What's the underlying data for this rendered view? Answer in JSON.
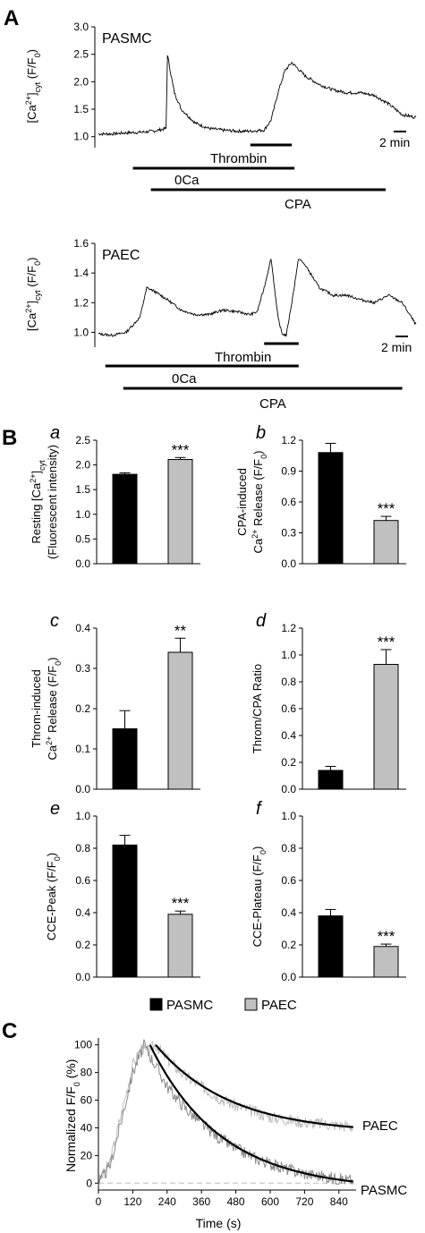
{
  "panel_letters": {
    "A": "A",
    "B": "B",
    "C": "C"
  },
  "sub_letters": {
    "a": "a",
    "b": "b",
    "c": "c",
    "d": "d",
    "e": "e",
    "f": "f"
  },
  "legend": [
    {
      "label": "PASMC",
      "color": "#000000"
    },
    {
      "label": "PAEC",
      "color": "#c0c0c0"
    }
  ],
  "chart_data": [
    {
      "id": "A-top",
      "type": "line",
      "label": "PASMC",
      "ylabel": "[Ca2+]cyt (F/F0)",
      "ylim": [
        0.8,
        3.0
      ],
      "yticks": [
        "1.0",
        "1.5",
        "2.0",
        "2.5",
        "3.0"
      ],
      "scale_bar": "2 min",
      "trace": {
        "t": [
          0,
          10,
          20,
          30,
          40,
          49,
          50,
          52,
          55,
          60,
          70,
          80,
          90,
          100,
          110,
          120,
          125,
          130,
          135,
          140,
          150,
          160,
          170,
          180,
          190,
          200,
          210,
          220,
          230
        ],
        "y": [
          1.05,
          1.05,
          1.07,
          1.08,
          1.1,
          1.15,
          2.5,
          2.2,
          1.8,
          1.5,
          1.25,
          1.15,
          1.12,
          1.1,
          1.1,
          1.12,
          1.3,
          1.8,
          2.2,
          2.35,
          2.1,
          1.95,
          1.85,
          1.8,
          1.8,
          1.75,
          1.6,
          1.4,
          1.35
        ]
      },
      "bars": [
        {
          "label": "Thrombin",
          "start": 110,
          "end": 140
        },
        {
          "label": "0Ca",
          "start": 25,
          "end": 142
        },
        {
          "label": "CPA",
          "start": 38,
          "end": 208
        }
      ]
    },
    {
      "id": "A-bottom",
      "type": "line",
      "label": "PAEC",
      "ylabel": "[Ca2+]cyt (F/F0)",
      "ylim": [
        0.9,
        1.6
      ],
      "yticks": [
        "1.0",
        "1.2",
        "1.4",
        "1.6"
      ],
      "scale_bar": "2 min",
      "trace": {
        "t": [
          0,
          10,
          20,
          30,
          35,
          40,
          50,
          60,
          70,
          80,
          90,
          100,
          110,
          115,
          120,
          125,
          130,
          133,
          136,
          140,
          145,
          150,
          160,
          170,
          180,
          190,
          200,
          210,
          220,
          230
        ],
        "y": [
          0.99,
          0.98,
          1.0,
          1.1,
          1.3,
          1.28,
          1.22,
          1.15,
          1.12,
          1.12,
          1.15,
          1.14,
          1.12,
          1.14,
          1.3,
          1.5,
          1.1,
          0.99,
          0.98,
          1.2,
          1.5,
          1.45,
          1.3,
          1.25,
          1.25,
          1.22,
          1.2,
          1.25,
          1.2,
          1.05
        ]
      },
      "bars": [
        {
          "label": "Thrombin",
          "start": 120,
          "end": 145
        },
        {
          "label": "0Ca",
          "start": 5,
          "end": 145
        },
        {
          "label": "CPA",
          "start": 18,
          "end": 220
        }
      ]
    },
    {
      "id": "Ba",
      "type": "bar",
      "label": "a",
      "ylabel_lines": [
        "Resting [Ca2+]cyt",
        "(Fluorescent intensity)"
      ],
      "ylim": [
        0,
        2.5
      ],
      "yticks": [
        "0.0",
        "0.5",
        "1.0",
        "1.5",
        "2.0",
        "2.5"
      ],
      "values": [
        1.81,
        2.11
      ],
      "errors": [
        0.03,
        0.04
      ],
      "sig": "***"
    },
    {
      "id": "Bb",
      "type": "bar",
      "label": "b",
      "ylabel_lines": [
        "CPA-induced",
        "Ca2+ Release (F/F0)"
      ],
      "ylim": [
        0,
        1.2
      ],
      "yticks": [
        "0.0",
        "0.3",
        "0.6",
        "0.9",
        "1.2"
      ],
      "values": [
        1.08,
        0.42
      ],
      "errors": [
        0.09,
        0.04
      ],
      "sig": "***"
    },
    {
      "id": "Bc",
      "type": "bar",
      "label": "c",
      "ylabel_lines": [
        "Throm-induced",
        "Ca2+ Release (F/F0)"
      ],
      "ylim": [
        0,
        0.4
      ],
      "yticks": [
        "0.0",
        "0.1",
        "0.2",
        "0.3",
        "0.4"
      ],
      "values": [
        0.15,
        0.34
      ],
      "errors": [
        0.045,
        0.035
      ],
      "sig": "**"
    },
    {
      "id": "Bd",
      "type": "bar",
      "label": "d",
      "ylabel_lines": [
        "Throm/CPA Ratio"
      ],
      "ylim": [
        0,
        1.2
      ],
      "yticks": [
        "0.0",
        "0.2",
        "0.4",
        "0.6",
        "0.8",
        "1.0",
        "1.2"
      ],
      "values": [
        0.14,
        0.93
      ],
      "errors": [
        0.03,
        0.11
      ],
      "sig": "***"
    },
    {
      "id": "Be",
      "type": "bar",
      "label": "e",
      "ylabel_lines": [
        "CCE-Peak (F/F0)"
      ],
      "ylim": [
        0,
        1.0
      ],
      "yticks": [
        "0.0",
        "0.2",
        "0.4",
        "0.6",
        "0.8",
        "1.0"
      ],
      "values": [
        0.82,
        0.39
      ],
      "errors": [
        0.06,
        0.02
      ],
      "sig": "***"
    },
    {
      "id": "Bf",
      "type": "bar",
      "label": "f",
      "ylabel_lines": [
        "CCE-Plateau (F/F0)"
      ],
      "ylim": [
        0,
        1.0
      ],
      "yticks": [
        "0.0",
        "0.2",
        "0.4",
        "0.6",
        "0.8",
        "1.0"
      ],
      "values": [
        0.38,
        0.19
      ],
      "errors": [
        0.04,
        0.015
      ],
      "sig": "***"
    },
    {
      "id": "C",
      "type": "line",
      "xlabel": "Time (s)",
      "ylabel": "Normalized F/F0 (%)",
      "xlim": [
        0,
        900
      ],
      "ylim": [
        -5,
        105
      ],
      "xticks": [
        "0",
        "120",
        "240",
        "360",
        "480",
        "600",
        "720",
        "840"
      ],
      "yticks": [
        "0",
        "20",
        "40",
        "60",
        "80",
        "100"
      ],
      "series": [
        {
          "name": "PAEC",
          "x": [
            0,
            40,
            80,
            120,
            150,
            170,
            200,
            240,
            300,
            360,
            420,
            480,
            540,
            600,
            660,
            720,
            780,
            840,
            890
          ],
          "y": [
            0,
            15,
            50,
            85,
            98,
            95,
            100,
            90,
            78,
            70,
            62,
            56,
            52,
            48,
            46,
            44,
            43,
            42,
            41
          ]
        },
        {
          "name": "PASMC",
          "x": [
            0,
            40,
            80,
            120,
            160,
            180,
            200,
            240,
            300,
            360,
            420,
            480,
            540,
            600,
            660,
            720,
            780,
            840,
            890
          ],
          "y": [
            0,
            12,
            45,
            80,
            100,
            92,
            85,
            70,
            55,
            43,
            33,
            25,
            19,
            14,
            10,
            7,
            5,
            3,
            2
          ]
        }
      ],
      "fit_PAEC": {
        "x0": 200,
        "y0": 100,
        "tau": 260,
        "plateau": 36
      },
      "fit_PASMC": {
        "x0": 180,
        "y0": 100,
        "tau": 250,
        "plateau": -5
      }
    }
  ]
}
